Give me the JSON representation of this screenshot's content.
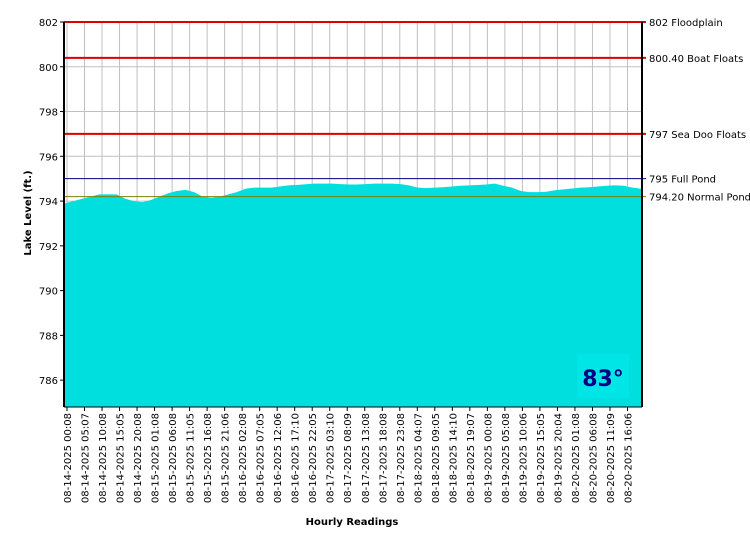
{
  "chart_data": {
    "type": "area",
    "xlabel": "Hourly Readings",
    "ylabel": "Lake Level (ft.)",
    "ylim": [
      784.8,
      802
    ],
    "y_ticks": [
      786,
      788,
      790,
      792,
      794,
      796,
      798,
      800,
      802
    ],
    "grid": true,
    "fill_color": "#00e5e5",
    "temperature": "83°",
    "reference_lines": [
      {
        "value": 802,
        "label": "802 Floodplain",
        "color": "#dd0000"
      },
      {
        "value": 800.4,
        "label": "800.40 Boat Floats",
        "color": "#dd0000"
      },
      {
        "value": 797,
        "label": "797 Sea Doo Floats",
        "color": "#dd0000"
      },
      {
        "value": 795,
        "label": "795 Full Pond",
        "color": "#000080"
      },
      {
        "value": 794.2,
        "label": "794.20 Normal Pond",
        "color": "#808000"
      }
    ],
    "x_tick_labels": [
      "08-14-2025 00:08",
      "08-14-2025 05:07",
      "08-14-2025 10:08",
      "08-14-2025 15:05",
      "08-14-2025 20:08",
      "08-15-2025 01:08",
      "08-15-2025 06:08",
      "08-15-2025 11:05",
      "08-15-2025 16:08",
      "08-15-2025 21:06",
      "08-16-2025 02:08",
      "08-16-2025 07:05",
      "08-16-2025 12:06",
      "08-16-2025 17:10",
      "08-16-2025 22:05",
      "08-17-2025 03:10",
      "08-17-2025 08:09",
      "08-17-2025 13:08",
      "08-17-2025 18:08",
      "08-17-2025 23:08",
      "08-18-2025 04:07",
      "08-18-2025 09:05",
      "08-18-2025 14:10",
      "08-18-2025 19:07",
      "08-19-2025 00:08",
      "08-19-2025 05:08",
      "08-19-2025 10:06",
      "08-19-2025 15:05",
      "08-19-2025 20:04",
      "08-20-2025 01:08",
      "08-20-2025 06:08",
      "08-20-2025 11:09",
      "08-20-2025 16:06"
    ],
    "series": [
      {
        "values": [
          793.9,
          794.0,
          794.1,
          794.2,
          794.3,
          794.3,
          794.3,
          794.1,
          794.0,
          793.95,
          794.05,
          794.2,
          794.35,
          794.45,
          794.5,
          794.4,
          794.2,
          794.15,
          794.2,
          794.3,
          794.4,
          794.55,
          794.6,
          794.6,
          794.6,
          794.65,
          794.7,
          794.72,
          794.75,
          794.78,
          794.78,
          794.78,
          794.76,
          794.74,
          794.74,
          794.76,
          794.78,
          794.78,
          794.78,
          794.76,
          794.7,
          794.6,
          794.58,
          794.6,
          794.62,
          794.65,
          794.68,
          794.7,
          794.72,
          794.74,
          794.78,
          794.68,
          794.6,
          794.45,
          794.4,
          794.4,
          794.42,
          794.48,
          794.52,
          794.56,
          794.6,
          794.62,
          794.65,
          794.68,
          794.7,
          794.68,
          794.6,
          794.55
        ]
      }
    ]
  }
}
